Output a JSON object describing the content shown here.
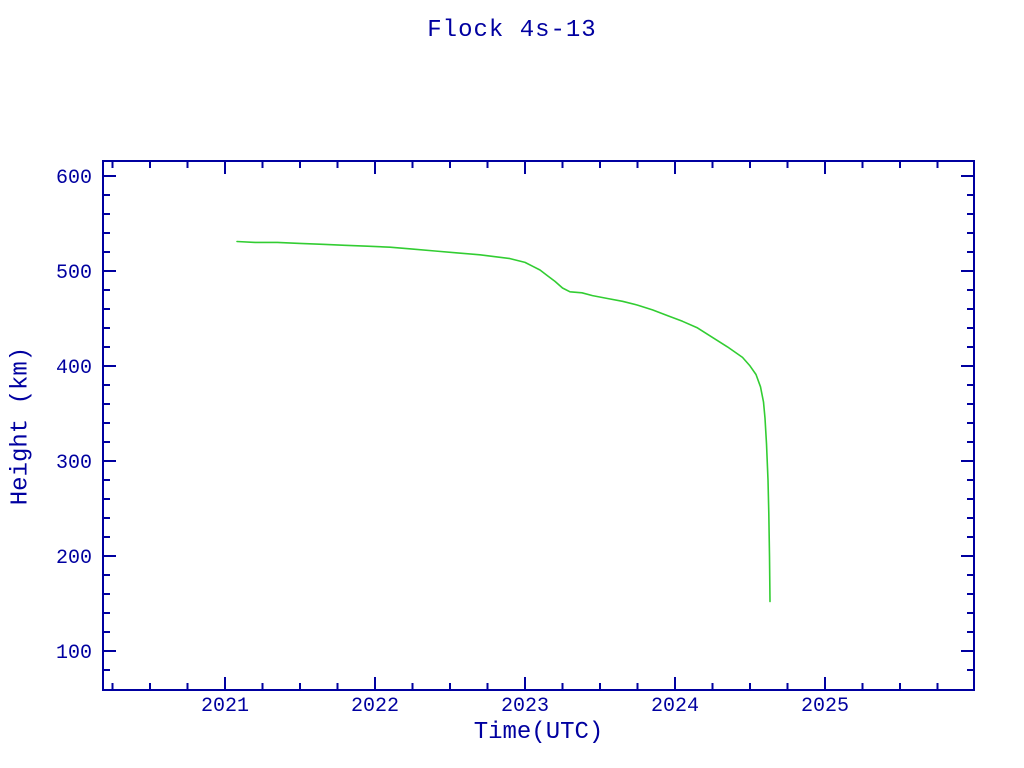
{
  "title": "Flock 4s-13",
  "colors": {
    "axis": "#0000A0",
    "text": "#0000A0",
    "line": "#32CD32",
    "background": "#FFFFFF"
  },
  "chart_data": {
    "type": "line",
    "title": "Flock 4s-13",
    "xlabel": "Time(UTC)",
    "ylabel": "Height (km)",
    "xlim": [
      2020.187,
      2025.993
    ],
    "ylim": [
      58.9,
      615.7
    ],
    "x_major_ticks": [
      2021,
      2022,
      2023,
      2024,
      2025
    ],
    "x_major_tick_labels": [
      "2021",
      "2022",
      "2023",
      "2024",
      "2025"
    ],
    "x_minor_step": 0.25,
    "y_major_ticks": [
      100,
      200,
      300,
      400,
      500,
      600
    ],
    "y_major_tick_labels": [
      "100",
      "200",
      "300",
      "400",
      "500",
      "600"
    ],
    "y_minor_step": 20,
    "grid": false,
    "legend": null,
    "series": [
      {
        "name": "orbit-height",
        "color": "#32CD32",
        "points": [
          [
            2021.08,
            531
          ],
          [
            2021.2,
            530
          ],
          [
            2021.35,
            530
          ],
          [
            2021.5,
            529
          ],
          [
            2021.65,
            528
          ],
          [
            2021.8,
            527
          ],
          [
            2021.95,
            526
          ],
          [
            2022.1,
            525
          ],
          [
            2022.25,
            523
          ],
          [
            2022.4,
            521
          ],
          [
            2022.55,
            519
          ],
          [
            2022.7,
            517
          ],
          [
            2022.8,
            515
          ],
          [
            2022.9,
            513
          ],
          [
            2023.0,
            509
          ],
          [
            2023.05,
            505
          ],
          [
            2023.1,
            501
          ],
          [
            2023.15,
            495
          ],
          [
            2023.2,
            489
          ],
          [
            2023.25,
            482
          ],
          [
            2023.3,
            478
          ],
          [
            2023.38,
            477
          ],
          [
            2023.45,
            474
          ],
          [
            2023.55,
            471
          ],
          [
            2023.65,
            468
          ],
          [
            2023.75,
            464
          ],
          [
            2023.85,
            459
          ],
          [
            2023.95,
            453
          ],
          [
            2024.05,
            447
          ],
          [
            2024.15,
            440
          ],
          [
            2024.25,
            430
          ],
          [
            2024.35,
            420
          ],
          [
            2024.45,
            409
          ],
          [
            2024.5,
            400
          ],
          [
            2024.54,
            391
          ],
          [
            2024.57,
            378
          ],
          [
            2024.59,
            362
          ],
          [
            2024.6,
            345
          ],
          [
            2024.61,
            318
          ],
          [
            2024.62,
            280
          ],
          [
            2024.625,
            245
          ],
          [
            2024.63,
            200
          ],
          [
            2024.633,
            152
          ]
        ]
      }
    ]
  }
}
